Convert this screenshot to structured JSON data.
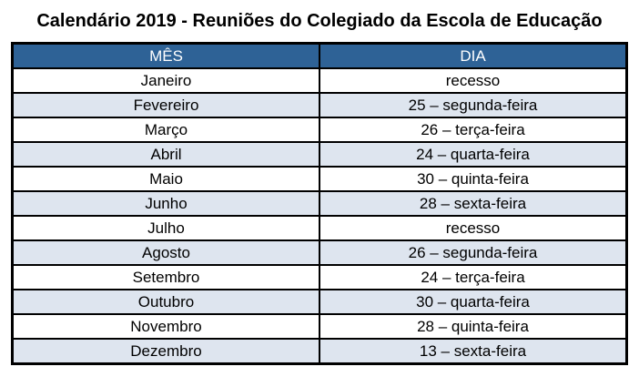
{
  "title": "Calendário 2019 - Reuniões do Colegiado da Escola de Educação",
  "table": {
    "headers": [
      "MÊS",
      "DIA"
    ],
    "rows": [
      {
        "mes": "Janeiro",
        "dia": "recesso"
      },
      {
        "mes": "Fevereiro",
        "dia": "25 – segunda-feira"
      },
      {
        "mes": "Março",
        "dia": "26 – terça-feira"
      },
      {
        "mes": "Abril",
        "dia": "24 – quarta-feira"
      },
      {
        "mes": "Maio",
        "dia": "30 – quinta-feira"
      },
      {
        "mes": "Junho",
        "dia": "28 – sexta-feira"
      },
      {
        "mes": "Julho",
        "dia": "recesso"
      },
      {
        "mes": "Agosto",
        "dia": "26 – segunda-feira"
      },
      {
        "mes": "Setembro",
        "dia": "24 – terça-feira"
      },
      {
        "mes": "Outubro",
        "dia": "30 – quarta-feira"
      },
      {
        "mes": "Novembro",
        "dia": "28 – quinta-feira"
      },
      {
        "mes": "Dezembro",
        "dia": "13 – sexta-feira"
      }
    ],
    "colors": {
      "header_bg": "#2E6296",
      "header_text": "#FFFFFF",
      "row_alt_bg": "#DEE5EF",
      "border": "#000000"
    }
  }
}
